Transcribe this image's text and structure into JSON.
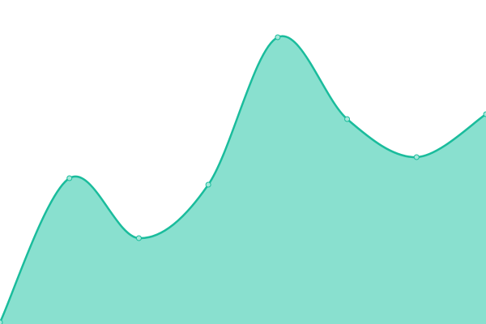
{
  "chart_data": {
    "type": "area",
    "smooth": true,
    "x": [
      0,
      1,
      2,
      3,
      4,
      5,
      6,
      7
    ],
    "values": [
      2,
      180,
      106,
      172,
      354,
      253,
      206,
      259
    ],
    "ylim": [
      0,
      400
    ],
    "grid": false,
    "axes_visible": false,
    "colors": {
      "line": "#1abc9c",
      "fill": "#89e0cf",
      "point_fill": "#a6e8da"
    }
  }
}
